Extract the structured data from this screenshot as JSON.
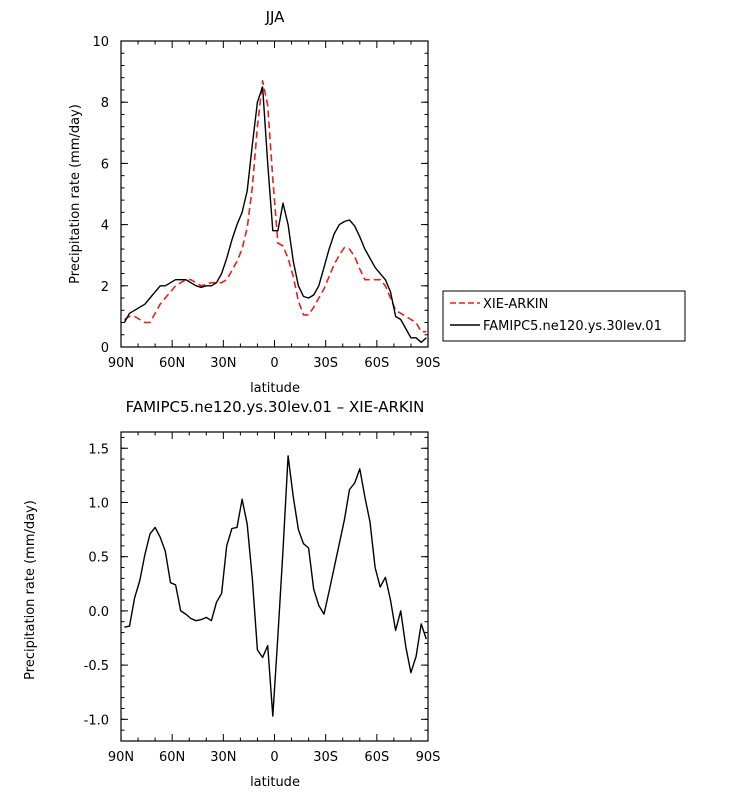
{
  "chart_data": [
    {
      "type": "line",
      "title": "JJA",
      "xlabel": "latitude",
      "ylabel": "Precipitation rate (mm/day)",
      "xlim": [
        90,
        -90
      ],
      "ylim": [
        0,
        10
      ],
      "x_ticks": [
        {
          "value": 90,
          "label": "90N"
        },
        {
          "value": 60,
          "label": "60N"
        },
        {
          "value": 30,
          "label": "30N"
        },
        {
          "value": 0,
          "label": "0"
        },
        {
          "value": -30,
          "label": "30S"
        },
        {
          "value": -60,
          "label": "60S"
        },
        {
          "value": -90,
          "label": "90S"
        }
      ],
      "y_ticks": [
        {
          "value": 0,
          "label": "0"
        },
        {
          "value": 2,
          "label": "2"
        },
        {
          "value": 4,
          "label": "4"
        },
        {
          "value": 6,
          "label": "6"
        },
        {
          "value": 8,
          "label": "8"
        },
        {
          "value": 10,
          "label": "10"
        }
      ],
      "legend_position": "right",
      "series": [
        {
          "name": "XIE-ARKIN",
          "color": "#e8201e",
          "dash": "dashed",
          "x": [
            88,
            85,
            82,
            79,
            76,
            73,
            70,
            67,
            64,
            61,
            58,
            55,
            52,
            49,
            46,
            43,
            40,
            37,
            34,
            31,
            28,
            25,
            22,
            19,
            16,
            13,
            10,
            7,
            4,
            1,
            -2,
            -5,
            -8,
            -11,
            -14,
            -17,
            -20,
            -23,
            -26,
            -29,
            -32,
            -35,
            -38,
            -41,
            -44,
            -47,
            -50,
            -53,
            -56,
            -59,
            -62,
            -65,
            -68,
            -71,
            -74,
            -77,
            -80,
            -83,
            -86,
            -89
          ],
          "y": [
            0.9,
            1.0,
            1.0,
            0.9,
            0.8,
            0.8,
            1.1,
            1.4,
            1.6,
            1.8,
            2.0,
            2.1,
            2.2,
            2.2,
            2.1,
            2.0,
            2.05,
            2.1,
            2.1,
            2.1,
            2.2,
            2.5,
            2.8,
            3.2,
            3.9,
            5.2,
            7.2,
            8.7,
            7.9,
            5.5,
            3.4,
            3.3,
            2.9,
            2.3,
            1.5,
            1.05,
            1.05,
            1.3,
            1.6,
            1.9,
            2.3,
            2.7,
            3.0,
            3.25,
            3.2,
            2.95,
            2.55,
            2.2,
            2.2,
            2.2,
            2.2,
            2.0,
            1.6,
            1.2,
            1.1,
            1.0,
            0.9,
            0.8,
            0.5,
            0.5
          ]
        },
        {
          "name": "FAMIPC5.ne120.ys.30lev.01",
          "color": "#000000",
          "dash": "solid",
          "x": [
            88,
            85,
            82,
            79,
            76,
            73,
            70,
            67,
            64,
            61,
            58,
            55,
            52,
            49,
            46,
            43,
            40,
            37,
            34,
            31,
            28,
            25,
            22,
            19,
            16,
            13,
            10,
            7,
            4,
            1,
            -2,
            -5,
            -8,
            -11,
            -14,
            -17,
            -20,
            -23,
            -26,
            -29,
            -32,
            -35,
            -38,
            -41,
            -44,
            -47,
            -50,
            -53,
            -56,
            -59,
            -62,
            -65,
            -68,
            -71,
            -74,
            -77,
            -80,
            -83,
            -86,
            -89
          ],
          "y": [
            0.8,
            1.1,
            1.2,
            1.3,
            1.4,
            1.6,
            1.8,
            2.0,
            2.0,
            2.1,
            2.2,
            2.2,
            2.2,
            2.1,
            2.0,
            1.95,
            2.0,
            2.0,
            2.1,
            2.4,
            2.9,
            3.5,
            4.0,
            4.4,
            5.1,
            6.6,
            8.0,
            8.5,
            6.0,
            3.8,
            3.8,
            4.7,
            4.0,
            2.8,
            2.0,
            1.65,
            1.6,
            1.7,
            2.0,
            2.6,
            3.2,
            3.7,
            4.0,
            4.1,
            4.15,
            3.95,
            3.6,
            3.2,
            2.9,
            2.6,
            2.4,
            2.2,
            1.8,
            1.0,
            0.9,
            0.6,
            0.3,
            0.3,
            0.15,
            0.3
          ]
        }
      ]
    },
    {
      "type": "line",
      "title": "FAMIPC5.ne120.ys.30lev.01 – XIE-ARKIN",
      "xlabel": "latitude",
      "ylabel": "Precipitation rate (mm/day)",
      "xlim": [
        90,
        -90
      ],
      "ylim": [
        -1.2,
        1.65
      ],
      "x_ticks": [
        {
          "value": 90,
          "label": "90N"
        },
        {
          "value": 60,
          "label": "60N"
        },
        {
          "value": 30,
          "label": "30N"
        },
        {
          "value": 0,
          "label": "0"
        },
        {
          "value": -30,
          "label": "30S"
        },
        {
          "value": -60,
          "label": "60S"
        },
        {
          "value": -90,
          "label": "90S"
        }
      ],
      "y_ticks": [
        {
          "value": -1.0,
          "label": "-1.0"
        },
        {
          "value": -0.5,
          "label": "-0.5"
        },
        {
          "value": 0.0,
          "label": "0.0"
        },
        {
          "value": 0.5,
          "label": "0.5"
        },
        {
          "value": 1.0,
          "label": "1.0"
        },
        {
          "value": 1.5,
          "label": "1.5"
        }
      ],
      "series": [
        {
          "color": "#000000",
          "dash": "solid",
          "x": [
            88,
            85,
            82,
            79,
            76,
            73,
            70,
            67,
            64,
            61,
            58,
            55,
            52,
            49,
            46,
            43,
            40,
            37,
            34,
            31,
            28,
            25,
            22,
            19,
            16,
            13,
            10,
            7,
            4,
            1,
            -2,
            -5,
            -8,
            -11,
            -14,
            -17,
            -20,
            -23,
            -26,
            -29,
            -32,
            -35,
            -38,
            -41,
            -44,
            -47,
            -50,
            -53,
            -56,
            -59,
            -62,
            -65,
            -68,
            -71,
            -74,
            -77,
            -80,
            -83,
            -86,
            -89
          ],
          "y": [
            -0.15,
            -0.14,
            0.12,
            0.28,
            0.52,
            0.71,
            0.77,
            0.68,
            0.55,
            0.26,
            0.24,
            0.0,
            -0.03,
            -0.07,
            -0.09,
            -0.08,
            -0.06,
            -0.09,
            0.08,
            0.16,
            0.6,
            0.76,
            0.77,
            1.03,
            0.8,
            0.3,
            -0.36,
            -0.43,
            -0.32,
            -0.97,
            -0.23,
            0.56,
            1.43,
            1.05,
            0.75,
            0.62,
            0.58,
            0.2,
            0.05,
            -0.03,
            0.18,
            0.4,
            0.62,
            0.84,
            1.12,
            1.18,
            1.31,
            1.05,
            0.82,
            0.4,
            0.22,
            0.31,
            0.1,
            -0.18,
            0.0,
            -0.33,
            -0.57,
            -0.42,
            -0.12,
            -0.26
          ]
        }
      ]
    }
  ]
}
